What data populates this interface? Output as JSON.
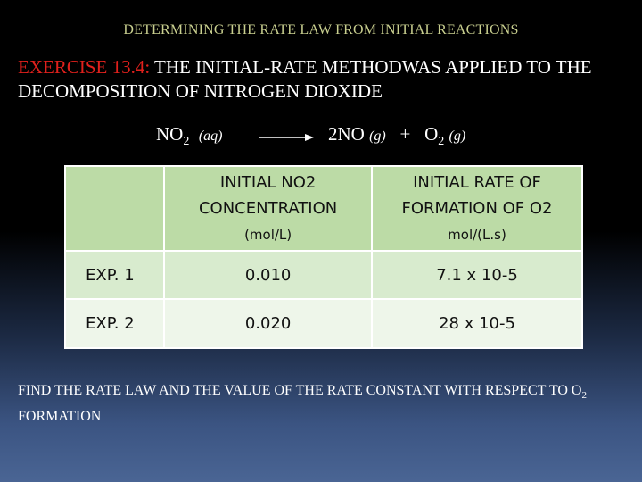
{
  "title": "DETERMINING THE RATE LAW FROM INITIAL REACTIONS",
  "exercise": {
    "label": "EXERCISE 13.4:",
    "text": " THE INITIAL-RATE METHODWAS APPLIED TO THE DECOMPOSITION OF NITROGEN DIOXIDE"
  },
  "equation": {
    "reactant": "NO",
    "reactant_sub": "2",
    "reactant_state": "(aq)",
    "product1": "2NO",
    "product1_state": "(g)",
    "plus": "+",
    "product2": "O",
    "product2_sub": "2",
    "product2_state": "(g)"
  },
  "table": {
    "headers": [
      {
        "main": "",
        "unit": ""
      },
      {
        "main": "INITIAL NO2 CONCENTRATION",
        "unit": "(mol/L)"
      },
      {
        "main": "INITIAL RATE OF FORMATION OF O2",
        "unit": "mol/(L.s)"
      }
    ],
    "rows": [
      {
        "label": "EXP. 1",
        "concentration": "0.010",
        "rate": "7.1 x 10-5"
      },
      {
        "label": "EXP. 2",
        "concentration": "0.020",
        "rate": "28 x 10-5"
      }
    ]
  },
  "question": {
    "text": "FIND THE RATE LAW AND THE VALUE OF THE RATE CONSTANT WITH RESPECT TO O",
    "sub": "2",
    "tail": " FORMATION"
  },
  "colors": {
    "title": "#c9cf8f",
    "exercise_label": "#e0201c",
    "header_fill": "#bcdba6",
    "row1_fill": "#d8ebce",
    "row2_fill": "#eef6ea"
  }
}
